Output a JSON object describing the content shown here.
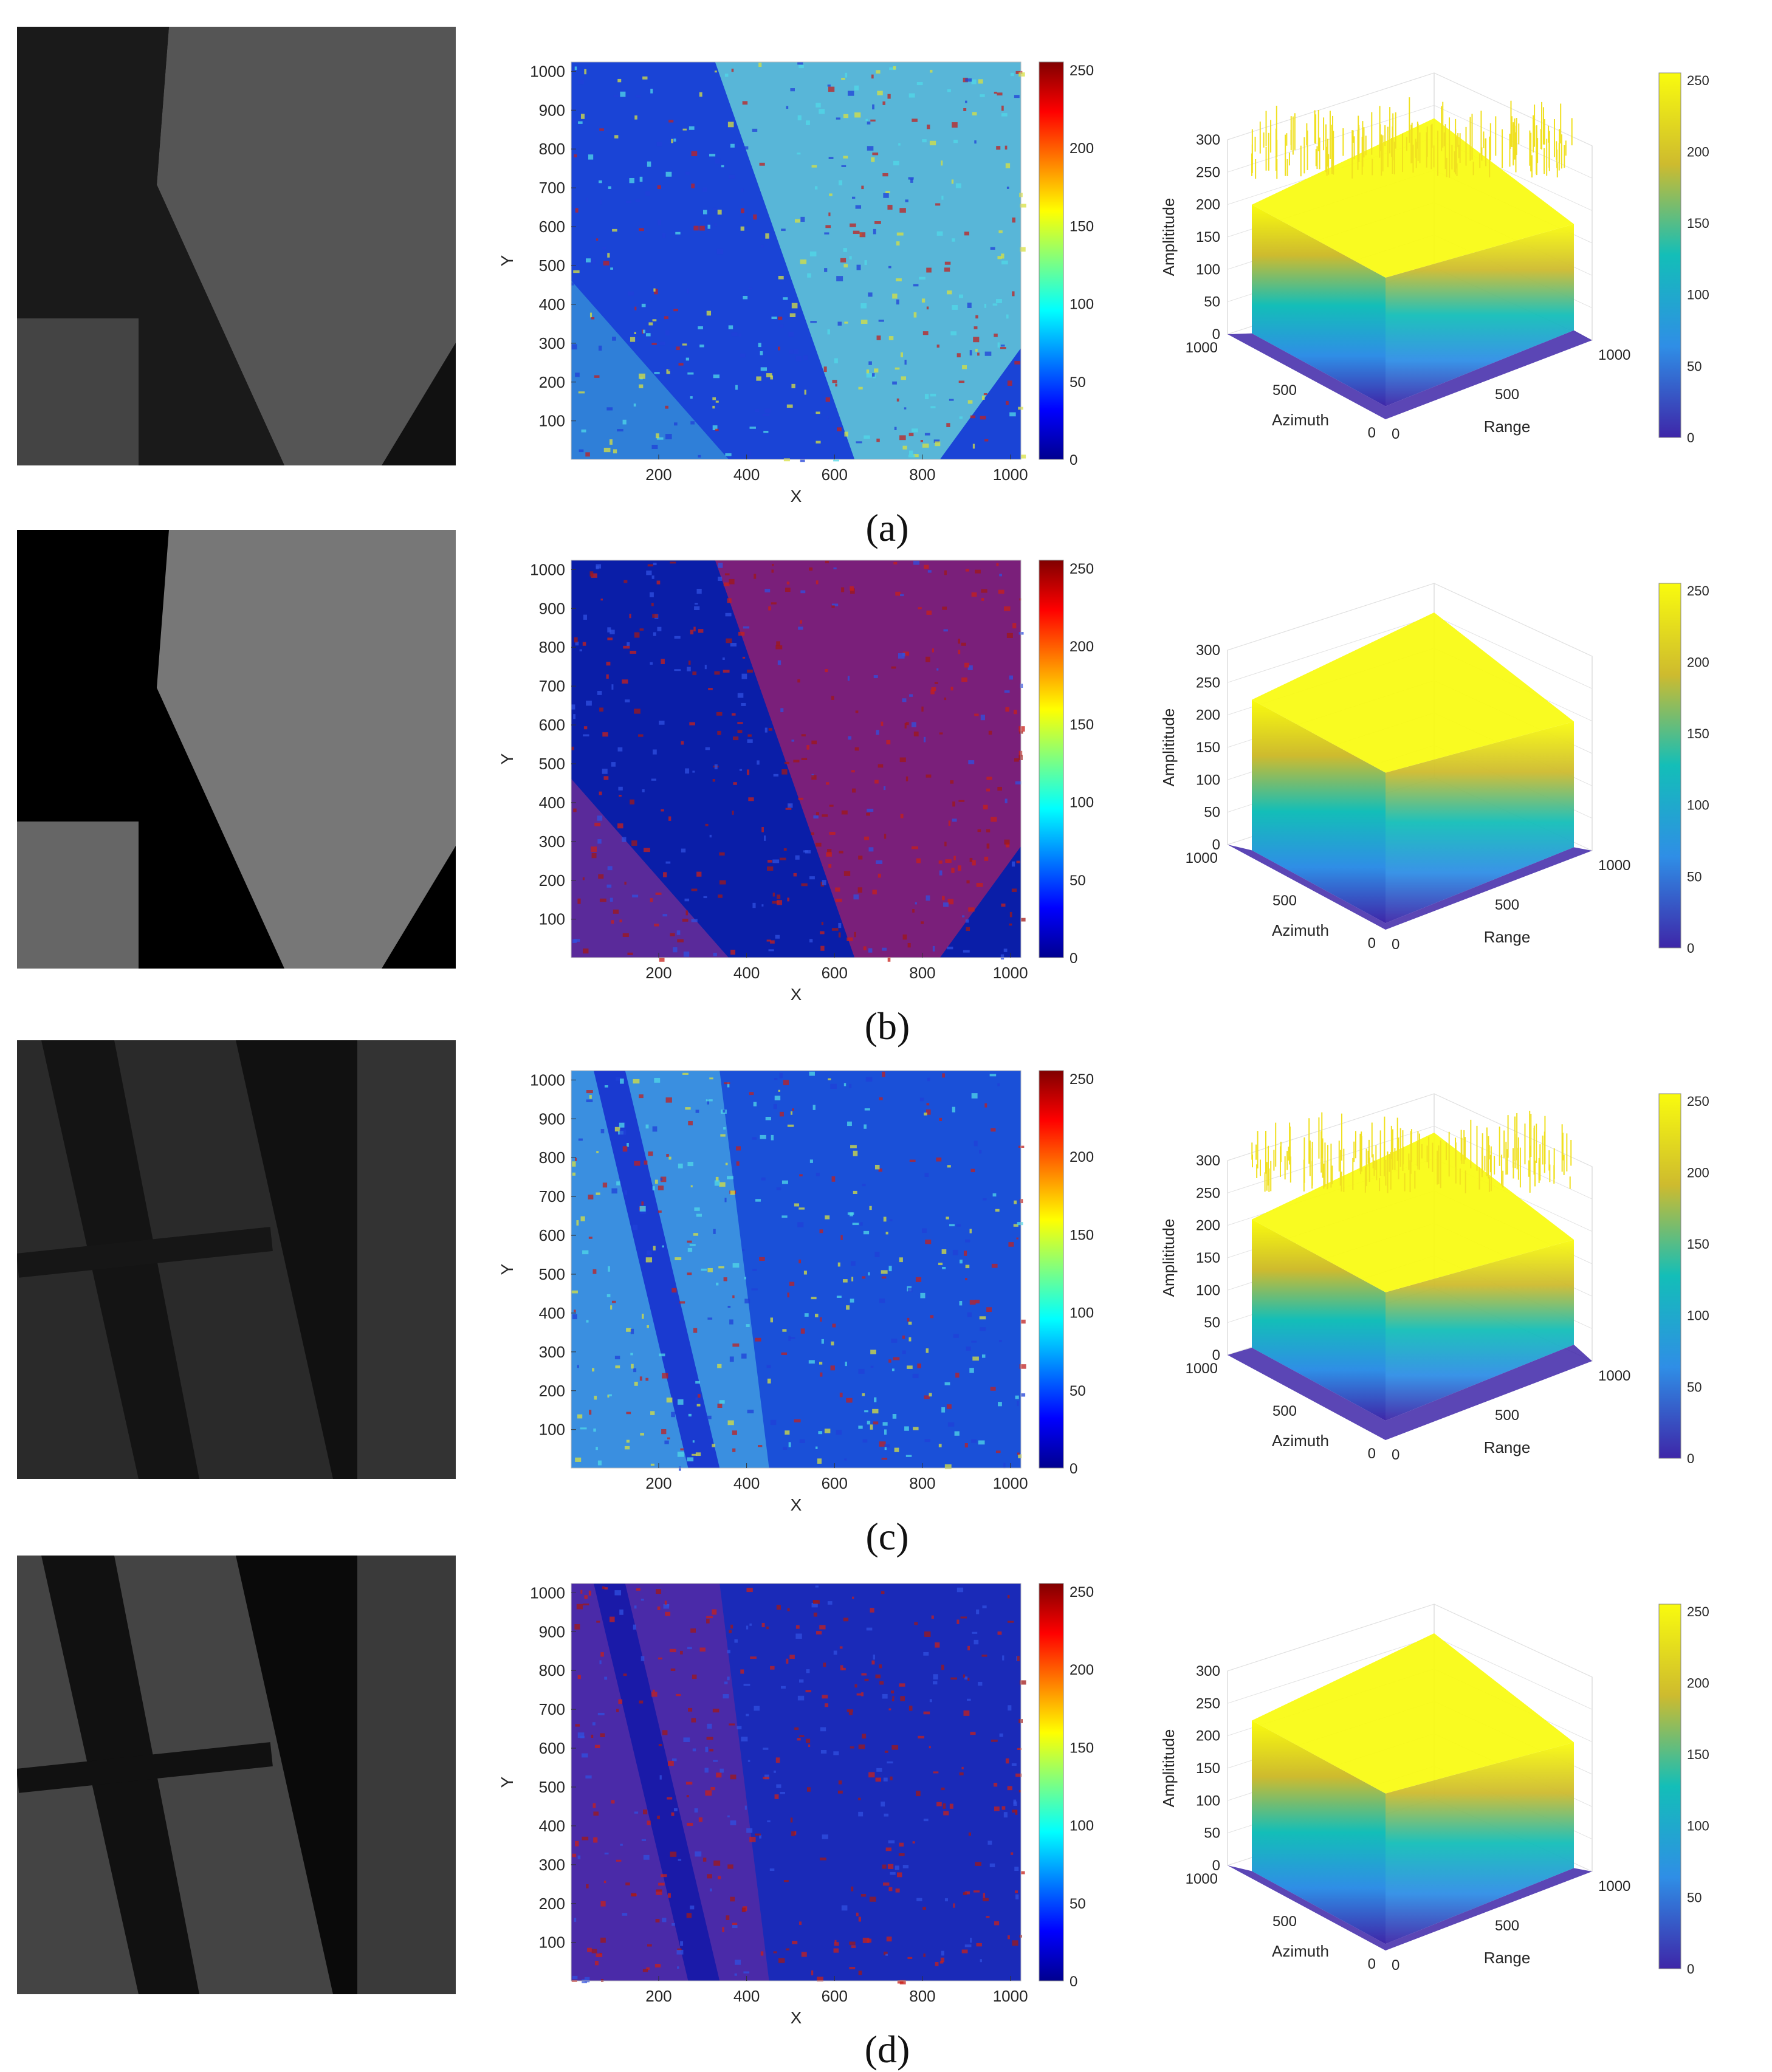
{
  "panels": [
    {
      "label": "(a)",
      "chart_data": [
        {
          "type": "heatmap",
          "xlabel": "X",
          "ylabel": "Y",
          "xticks": [
            200,
            400,
            600,
            800,
            1000
          ],
          "yticks": [
            100,
            200,
            300,
            400,
            500,
            600,
            700,
            800,
            900,
            1000
          ],
          "xlim": [
            1,
            1024
          ],
          "ylim": [
            1,
            1024
          ],
          "colorbar_ticks": [
            0,
            50,
            100,
            150,
            200,
            250
          ],
          "colormap": "jet",
          "clim": [
            0,
            255
          ]
        },
        {
          "type": "surface",
          "zlabel": "Amplititude",
          "xlabel": "Azimuth",
          "ylabel": "Range",
          "zticks": [
            0,
            50,
            100,
            150,
            200,
            250,
            300
          ],
          "azimuth_ticks": [
            0,
            500,
            1000
          ],
          "range_ticks": [
            0,
            500,
            1000
          ],
          "colorbar_ticks": [
            0,
            50,
            100,
            150,
            200,
            250
          ],
          "colormap": "parula",
          "clim": [
            0,
            255
          ],
          "grid": true
        }
      ]
    },
    {
      "label": "(b)",
      "chart_data": [
        {
          "type": "heatmap",
          "xlabel": "X",
          "ylabel": "Y",
          "xticks": [
            200,
            400,
            600,
            800,
            1000
          ],
          "yticks": [
            100,
            200,
            300,
            400,
            500,
            600,
            700,
            800,
            900,
            1000
          ],
          "xlim": [
            1,
            1024
          ],
          "ylim": [
            1,
            1024
          ],
          "colorbar_ticks": [
            0,
            50,
            100,
            150,
            200,
            250
          ],
          "colormap": "jet",
          "clim": [
            0,
            255
          ]
        },
        {
          "type": "surface",
          "zlabel": "Amplititude",
          "xlabel": "Azimuth",
          "ylabel": "Range",
          "zticks": [
            0,
            50,
            100,
            150,
            200,
            250,
            300
          ],
          "azimuth_ticks": [
            0,
            500,
            1000
          ],
          "range_ticks": [
            0,
            500,
            1000
          ],
          "colorbar_ticks": [
            0,
            50,
            100,
            150,
            200,
            250
          ],
          "colormap": "parula",
          "clim": [
            0,
            255
          ],
          "grid": true
        }
      ]
    },
    {
      "label": "(c)",
      "chart_data": [
        {
          "type": "heatmap",
          "xlabel": "X",
          "ylabel": "Y",
          "xticks": [
            200,
            400,
            600,
            800,
            1000
          ],
          "yticks": [
            100,
            200,
            300,
            400,
            500,
            600,
            700,
            800,
            900,
            1000
          ],
          "xlim": [
            1,
            1024
          ],
          "ylim": [
            1,
            1024
          ],
          "colorbar_ticks": [
            0,
            50,
            100,
            150,
            200,
            250
          ],
          "colormap": "jet",
          "clim": [
            0,
            255
          ]
        },
        {
          "type": "surface",
          "zlabel": "Amplititude",
          "xlabel": "Azimuth",
          "ylabel": "Range",
          "zticks": [
            0,
            50,
            100,
            150,
            200,
            250,
            300
          ],
          "azimuth_ticks": [
            0,
            500,
            1000
          ],
          "range_ticks": [
            0,
            500,
            1000
          ],
          "colorbar_ticks": [
            0,
            50,
            100,
            150,
            200,
            250
          ],
          "colormap": "parula",
          "clim": [
            0,
            255
          ],
          "grid": true
        }
      ]
    },
    {
      "label": "(d)",
      "chart_data": [
        {
          "type": "heatmap",
          "xlabel": "X",
          "ylabel": "Y",
          "xticks": [
            200,
            400,
            600,
            800,
            1000
          ],
          "yticks": [
            100,
            200,
            300,
            400,
            500,
            600,
            700,
            800,
            900,
            1000
          ],
          "xlim": [
            1,
            1024
          ],
          "ylim": [
            1,
            1024
          ],
          "colorbar_ticks": [
            0,
            50,
            100,
            150,
            200,
            250
          ],
          "colormap": "jet",
          "clim": [
            0,
            255
          ]
        },
        {
          "type": "surface",
          "zlabel": "Amplititude",
          "xlabel": "Azimuth",
          "ylabel": "Range",
          "zticks": [
            0,
            50,
            100,
            150,
            200,
            250,
            300
          ],
          "azimuth_ticks": [
            0,
            500,
            1000
          ],
          "range_ticks": [
            0,
            500,
            1000
          ],
          "colorbar_ticks": [
            0,
            50,
            100,
            150,
            200,
            250
          ],
          "colormap": "parula",
          "clim": [
            0,
            255
          ],
          "grid": true
        }
      ]
    }
  ],
  "colors": {
    "jet_low": "#00008f",
    "jet_mid": "#00ffff",
    "jet_high": "#800000",
    "parula_low": "#3e26a8",
    "parula_mid": "#13beb8",
    "parula_high": "#f9fb0e"
  }
}
